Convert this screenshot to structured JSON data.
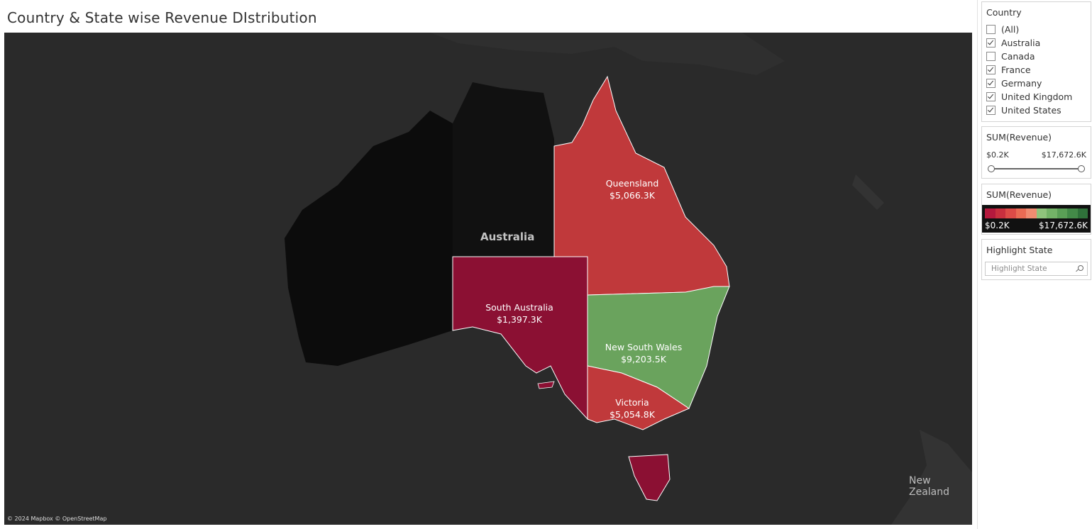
{
  "title": "Country & State wise Revenue DIstribution",
  "map": {
    "country_label": "Australia",
    "other_label": "New Zealand",
    "attribution": "© 2024 Mapbox © OpenStreetMap",
    "states": [
      {
        "name": "Queensland",
        "value": "$5,066.3K",
        "color": "#c0393b"
      },
      {
        "name": "South Australia",
        "value": "$1,397.3K",
        "color": "#8b1033"
      },
      {
        "name": "New South Wales",
        "value": "$9,203.5K",
        "color": "#6aa35d"
      },
      {
        "name": "Victoria",
        "value": "$5,054.8K",
        "color": "#c0393b"
      },
      {
        "name": "Tasmania",
        "value": "",
        "color": "#8b1033"
      }
    ]
  },
  "filters": {
    "country": {
      "title": "Country",
      "options": [
        {
          "label": "(All)",
          "checked": false
        },
        {
          "label": "Australia",
          "checked": true
        },
        {
          "label": "Canada",
          "checked": false
        },
        {
          "label": "France",
          "checked": true
        },
        {
          "label": "Germany",
          "checked": true
        },
        {
          "label": "United Kingdom",
          "checked": true
        },
        {
          "label": "United States",
          "checked": true
        }
      ]
    },
    "revenue_range": {
      "title": "SUM(Revenue)",
      "min": "$0.2K",
      "max": "$17,672.6K"
    },
    "color_legend": {
      "title": "SUM(Revenue)",
      "min": "$0.2K",
      "max": "$17,672.6K",
      "colors": [
        "#b5193d",
        "#c92f3e",
        "#dd4b47",
        "#ea6b54",
        "#f08c71",
        "#8fc47c",
        "#73b367",
        "#5a9f56",
        "#438a48",
        "#2f713a"
      ]
    },
    "highlight": {
      "title": "Highlight State",
      "placeholder": "Highlight State"
    }
  }
}
